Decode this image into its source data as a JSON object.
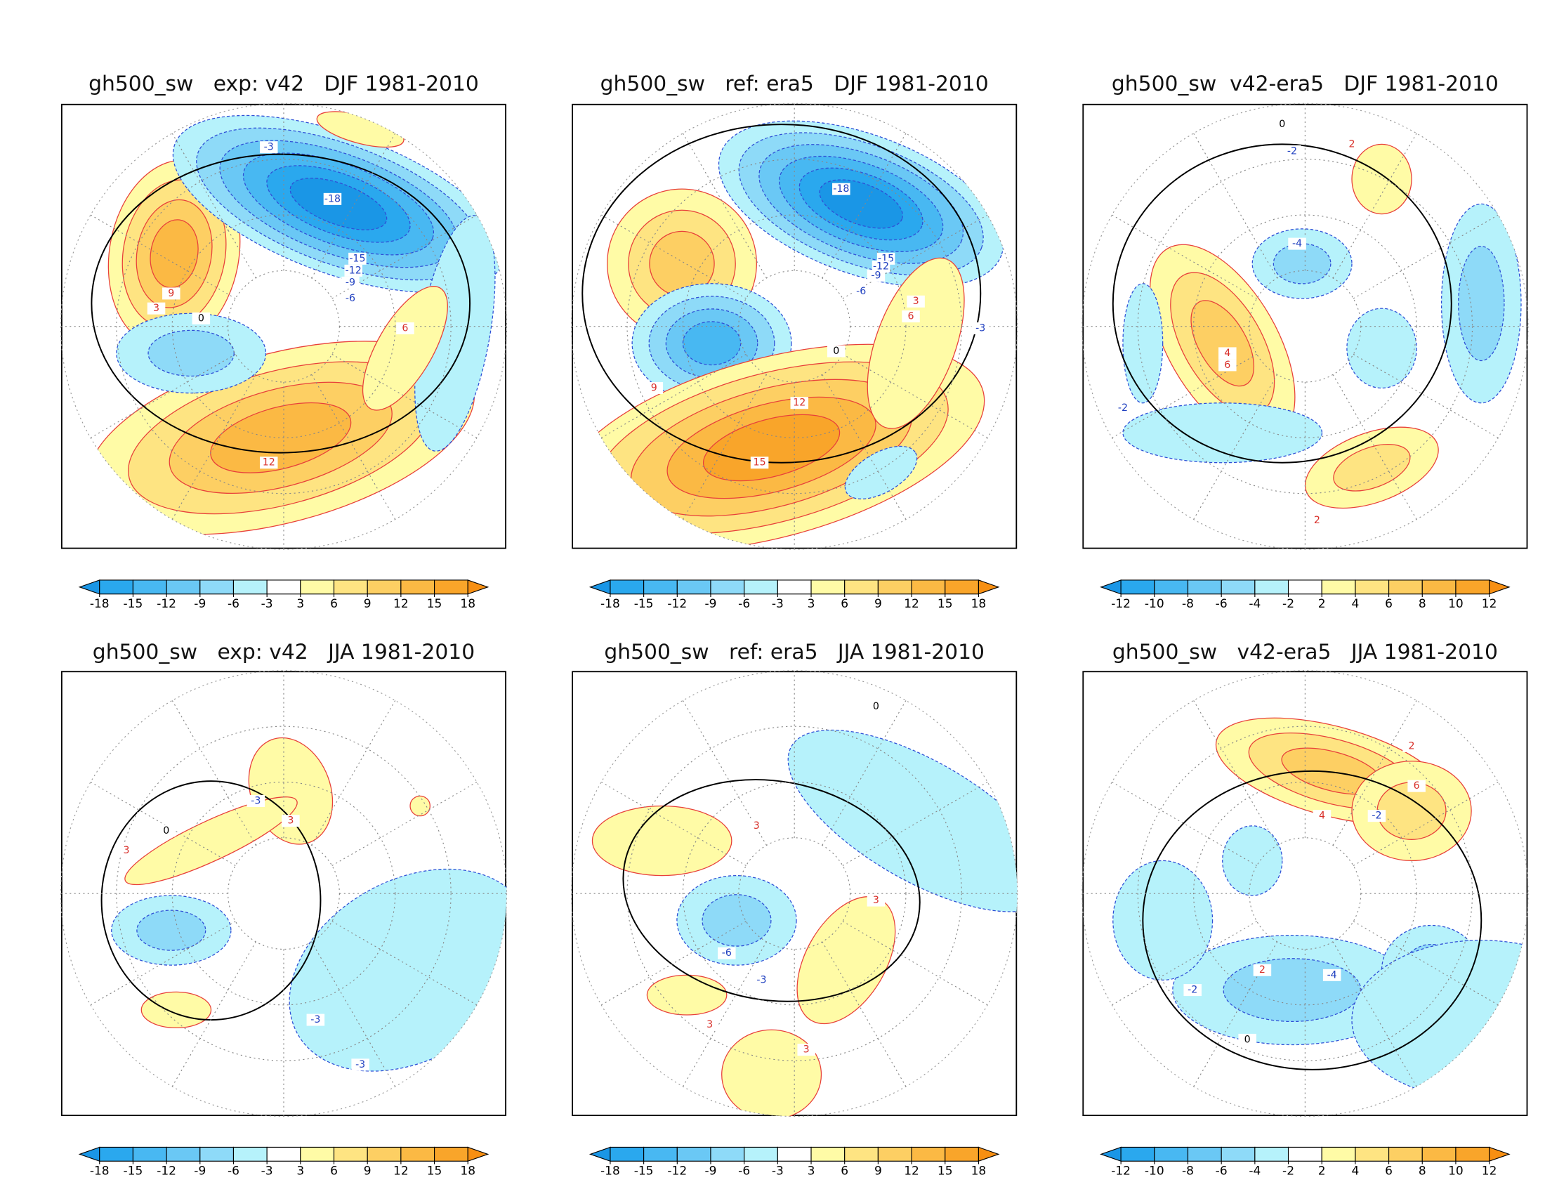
{
  "colors": [
    "#1a96e6",
    "#2aa8ee",
    "#48b8f2",
    "#6ac8f5",
    "#8edaf8",
    "#b6f2fb",
    "#ffffff",
    "#fffba6",
    "#fee482",
    "#fdcf63",
    "#fbb944",
    "#f9a52a",
    "#f78f12"
  ],
  "panels": [
    {
      "title": "gh500_sw   exp: v42   DJF 1981-2010",
      "colorbar": {
        "ticks": [
          -18,
          -15,
          -12,
          -9,
          -6,
          -3,
          3,
          6,
          9,
          12,
          15,
          18
        ]
      },
      "contour_labels": [
        -18,
        -15,
        -12,
        -9,
        -6,
        -3,
        3,
        6,
        9,
        12,
        0
      ]
    },
    {
      "title": "gh500_sw   ref: era5   DJF 1981-2010",
      "colorbar": {
        "ticks": [
          -18,
          -15,
          -12,
          -9,
          -6,
          -3,
          3,
          6,
          9,
          12,
          15,
          18
        ]
      },
      "contour_labels": [
        -18,
        -15,
        -12,
        -9,
        -6,
        -3,
        3,
        6,
        9,
        12,
        15,
        0
      ]
    },
    {
      "title": "gh500_sw  v42-era5   DJF 1981-2010",
      "colorbar": {
        "ticks": [
          -12,
          -10,
          -8,
          -6,
          -4,
          -2,
          2,
          4,
          6,
          8,
          10,
          12
        ]
      },
      "contour_labels": [
        -4,
        -2,
        2,
        4,
        6,
        -2,
        2,
        0
      ]
    },
    {
      "title": "gh500_sw   exp: v42   JJA 1981-2010",
      "colorbar": {
        "ticks": [
          -18,
          -15,
          -12,
          -9,
          -6,
          -3,
          3,
          6,
          9,
          12,
          15,
          18
        ]
      },
      "contour_labels": [
        3,
        3,
        -3,
        -3,
        -3,
        0
      ]
    },
    {
      "title": "gh500_sw   ref: era5   JJA 1981-2010",
      "colorbar": {
        "ticks": [
          -18,
          -15,
          -12,
          -9,
          -6,
          -3,
          3,
          6,
          9,
          12,
          15,
          18
        ]
      },
      "contour_labels": [
        3,
        3,
        -3,
        -6,
        3,
        3,
        0
      ]
    },
    {
      "title": "gh500_sw   v42-era5   JJA 1981-2010",
      "colorbar": {
        "ticks": [
          -12,
          -10,
          -8,
          -6,
          -4,
          -2,
          2,
          4,
          6,
          8,
          10,
          12
        ]
      },
      "contour_labels": [
        2,
        4,
        6,
        -2,
        -4,
        -2,
        2,
        0
      ]
    }
  ]
}
